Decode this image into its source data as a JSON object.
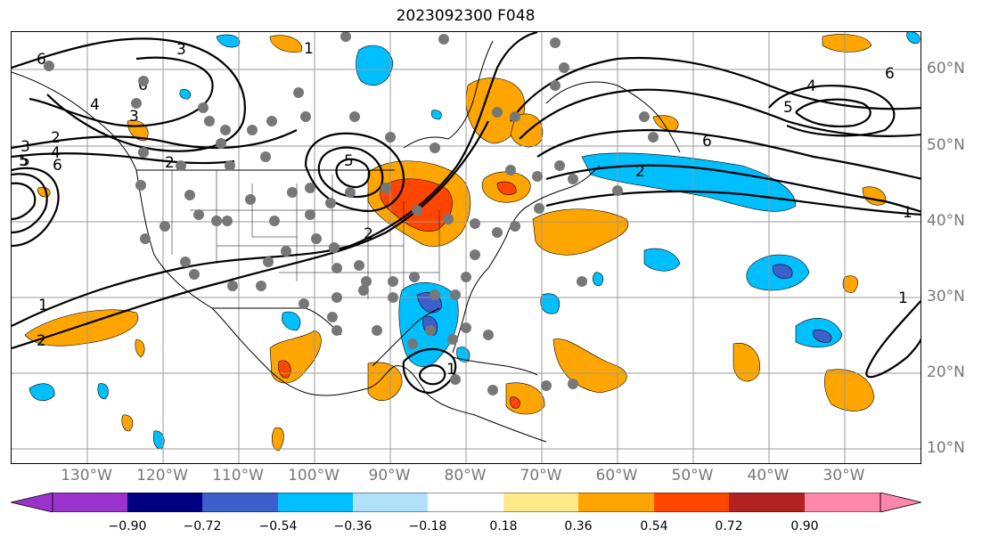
{
  "title": "2023092300 F048",
  "map": {
    "projection": "Plate Carree",
    "lon_range": [
      -139,
      -21
    ],
    "lat_range": [
      8,
      65
    ],
    "grid": true,
    "lon_labels": [
      "130°W",
      "120°W",
      "110°W",
      "100°W",
      "90°W",
      "80°W",
      "70°W",
      "60°W",
      "50°W",
      "40°W",
      "30°W"
    ],
    "lat_labels": [
      "60°N",
      "50°N",
      "40°N",
      "30°N",
      "20°N",
      "10°N"
    ],
    "contour_labels": [
      "6",
      "3",
      "1",
      "6",
      "3",
      "4",
      "5",
      "2",
      "3",
      "4",
      "5",
      "6",
      "2",
      "2",
      "5",
      "1",
      "2",
      "1",
      "6",
      "5",
      "4",
      "2",
      "6",
      "1",
      "1"
    ],
    "station_marker_color": "#777777",
    "line_color": "#000000"
  },
  "colorbar": {
    "ticks": [
      "−0.90",
      "−0.72",
      "−0.54",
      "−0.36",
      "−0.18",
      "0.18",
      "0.36",
      "0.54",
      "0.72",
      "0.90"
    ],
    "colors": [
      "#9933cc",
      "#000080",
      "#3d5fcc",
      "#00bfff",
      "#b0e0fa",
      "#ffffff",
      "#ffe98a",
      "#ffa500",
      "#ff4500",
      "#b22222",
      "#ff88aa"
    ],
    "extend": "both"
  }
}
